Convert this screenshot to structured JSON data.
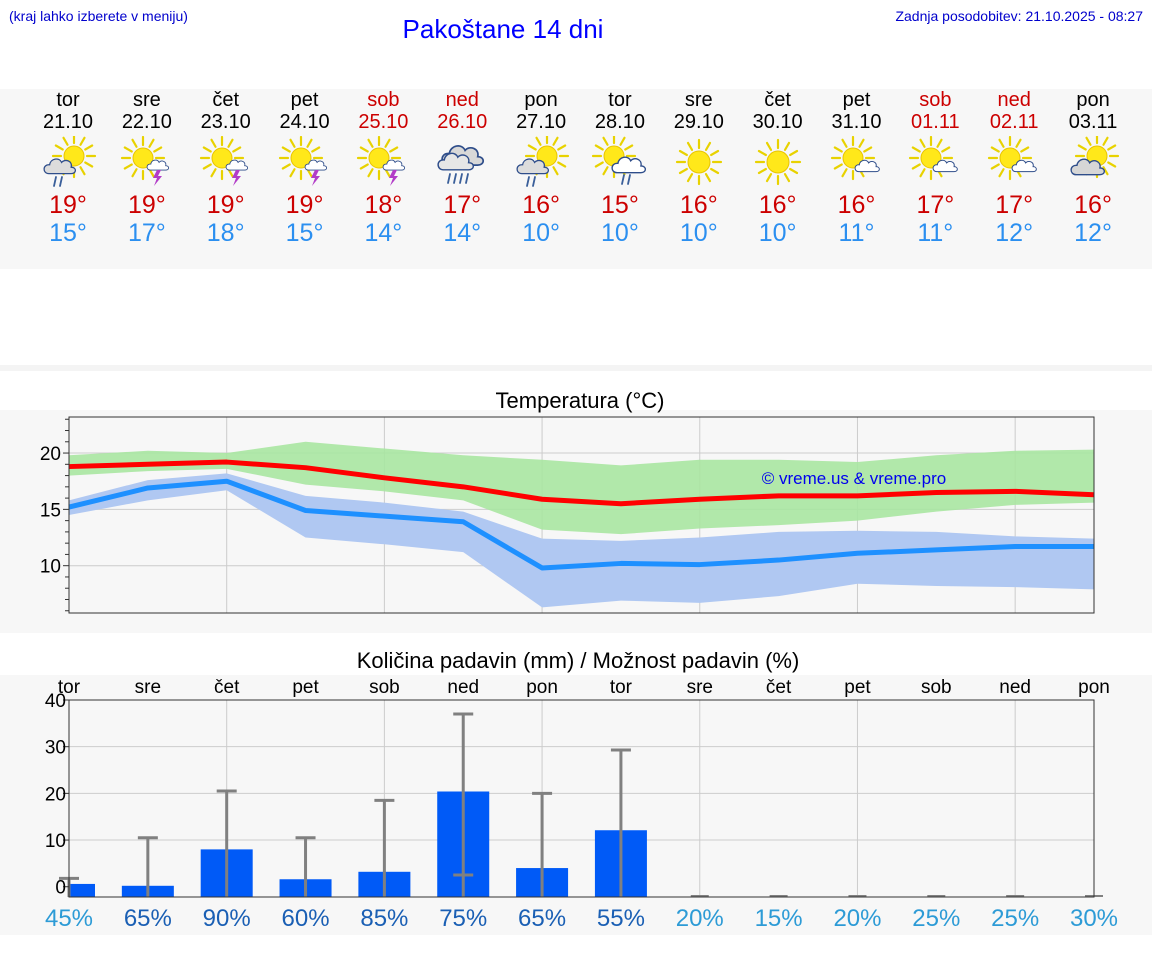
{
  "header": {
    "hint": "(kraj lahko izberete v meniju)",
    "title": "Pakoštane 14 dni",
    "updated": "Zadnja posodobitev: 21.10.2025 - 08:27"
  },
  "colors": {
    "max_temp": "#cc0000",
    "min_temp": "#2b8ff0",
    "weekend": "#cc0000",
    "precip_bar": "#005af7"
  },
  "days": [
    {
      "name": "tor",
      "date": "21.10",
      "weekend": false,
      "icon": "sun-cloud-rain-icon",
      "max": "19°",
      "min": "15°"
    },
    {
      "name": "sre",
      "date": "22.10",
      "weekend": false,
      "icon": "sun-thunder-icon",
      "max": "19°",
      "min": "17°"
    },
    {
      "name": "čet",
      "date": "23.10",
      "weekend": false,
      "icon": "sun-cloud-thunder-icon",
      "max": "19°",
      "min": "18°"
    },
    {
      "name": "pet",
      "date": "24.10",
      "weekend": false,
      "icon": "sun-thunder-icon",
      "max": "19°",
      "min": "15°"
    },
    {
      "name": "sob",
      "date": "25.10",
      "weekend": true,
      "icon": "sun-thunder-icon",
      "max": "18°",
      "min": "14°"
    },
    {
      "name": "ned",
      "date": "26.10",
      "weekend": true,
      "icon": "cloud-rain-icon",
      "max": "17°",
      "min": "14°"
    },
    {
      "name": "pon",
      "date": "27.10",
      "weekend": false,
      "icon": "sun-cloud-rain-icon",
      "max": "16°",
      "min": "10°"
    },
    {
      "name": "tor",
      "date": "28.10",
      "weekend": false,
      "icon": "sun-cloud-rain-light-icon",
      "max": "15°",
      "min": "10°"
    },
    {
      "name": "sre",
      "date": "29.10",
      "weekend": false,
      "icon": "sun-icon",
      "max": "16°",
      "min": "10°"
    },
    {
      "name": "čet",
      "date": "30.10",
      "weekend": false,
      "icon": "sun-icon",
      "max": "16°",
      "min": "10°"
    },
    {
      "name": "pet",
      "date": "31.10",
      "weekend": false,
      "icon": "sun-small-cloud-icon",
      "max": "16°",
      "min": "11°"
    },
    {
      "name": "sob",
      "date": "01.11",
      "weekend": true,
      "icon": "sun-small-cloud-icon",
      "max": "17°",
      "min": "11°"
    },
    {
      "name": "ned",
      "date": "02.11",
      "weekend": true,
      "icon": "sun-small-cloud-icon",
      "max": "17°",
      "min": "12°"
    },
    {
      "name": "pon",
      "date": "03.11",
      "weekend": false,
      "icon": "sun-gray-cloud-icon",
      "max": "16°",
      "min": "12°"
    }
  ],
  "chart_data": [
    {
      "type": "line",
      "title": "Temperatura (°C)",
      "watermark": "© vreme.us & vreme.pro",
      "x": [
        0,
        1,
        2,
        3,
        4,
        5,
        6,
        7,
        8,
        9,
        10,
        11,
        12,
        13
      ],
      "ylim": [
        5.8,
        23.2
      ],
      "yticks": [
        10,
        15,
        20
      ],
      "grid": true,
      "series": [
        {
          "name": "max",
          "color": "#ff0000",
          "values": [
            18.8,
            19.0,
            19.2,
            18.7,
            17.8,
            17.0,
            15.9,
            15.5,
            15.9,
            16.2,
            16.2,
            16.5,
            16.6,
            16.3
          ]
        },
        {
          "name": "min",
          "color": "#1e90ff",
          "values": [
            15.2,
            16.9,
            17.5,
            14.9,
            14.4,
            13.9,
            9.8,
            10.2,
            10.1,
            10.5,
            11.1,
            11.4,
            11.7,
            11.7
          ]
        }
      ],
      "bands": [
        {
          "name": "max-range",
          "color": "#a8e6a1",
          "upper": [
            19.8,
            20.2,
            20.0,
            21.0,
            20.4,
            19.8,
            19.4,
            18.9,
            19.4,
            19.4,
            19.2,
            19.8,
            20.2,
            20.3
          ],
          "lower": [
            18.0,
            18.4,
            18.6,
            17.2,
            16.6,
            15.8,
            13.2,
            12.8,
            13.3,
            13.6,
            14.0,
            14.8,
            15.4,
            15.6
          ]
        },
        {
          "name": "min-range",
          "color": "#b0c8f2",
          "upper": [
            15.8,
            17.6,
            18.2,
            16.2,
            15.6,
            14.8,
            12.4,
            12.2,
            12.5,
            13.0,
            13.1,
            13.0,
            12.6,
            12.4
          ],
          "lower": [
            14.5,
            15.8,
            16.7,
            12.5,
            11.9,
            11.2,
            6.3,
            6.9,
            6.7,
            7.3,
            8.4,
            8.2,
            8.1,
            7.9
          ]
        }
      ]
    },
    {
      "type": "bar",
      "title": "Količina padavin (mm) / Možnost padavin (%)",
      "categories": [
        "tor",
        "sre",
        "čet",
        "pet",
        "sob",
        "ned",
        "pon",
        "tor",
        "sre",
        "čet",
        "pet",
        "sob",
        "ned",
        "pon"
      ],
      "values": [
        0.6,
        0.2,
        8.0,
        1.6,
        3.2,
        20.4,
        4.0,
        12.1,
        0,
        0,
        0,
        0,
        0,
        0
      ],
      "error_high": [
        1.8,
        10.5,
        20.5,
        10.5,
        18.5,
        37.0,
        20.0,
        29.3,
        0,
        0,
        0,
        0,
        0,
        0
      ],
      "error_low": [
        0,
        0,
        0,
        0,
        0,
        2.5,
        0,
        0,
        0,
        0,
        0,
        0,
        0,
        0
      ],
      "probability": [
        "45%",
        "65%",
        "90%",
        "60%",
        "85%",
        "75%",
        "65%",
        "55%",
        "20%",
        "15%",
        "20%",
        "25%",
        "25%",
        "30%"
      ],
      "probability_values": [
        45,
        65,
        90,
        60,
        85,
        75,
        65,
        55,
        20,
        15,
        20,
        25,
        25,
        30
      ],
      "ylim": [
        -2.2,
        40
      ],
      "yticks": [
        0,
        10,
        20,
        30,
        40
      ],
      "grid": true
    }
  ]
}
